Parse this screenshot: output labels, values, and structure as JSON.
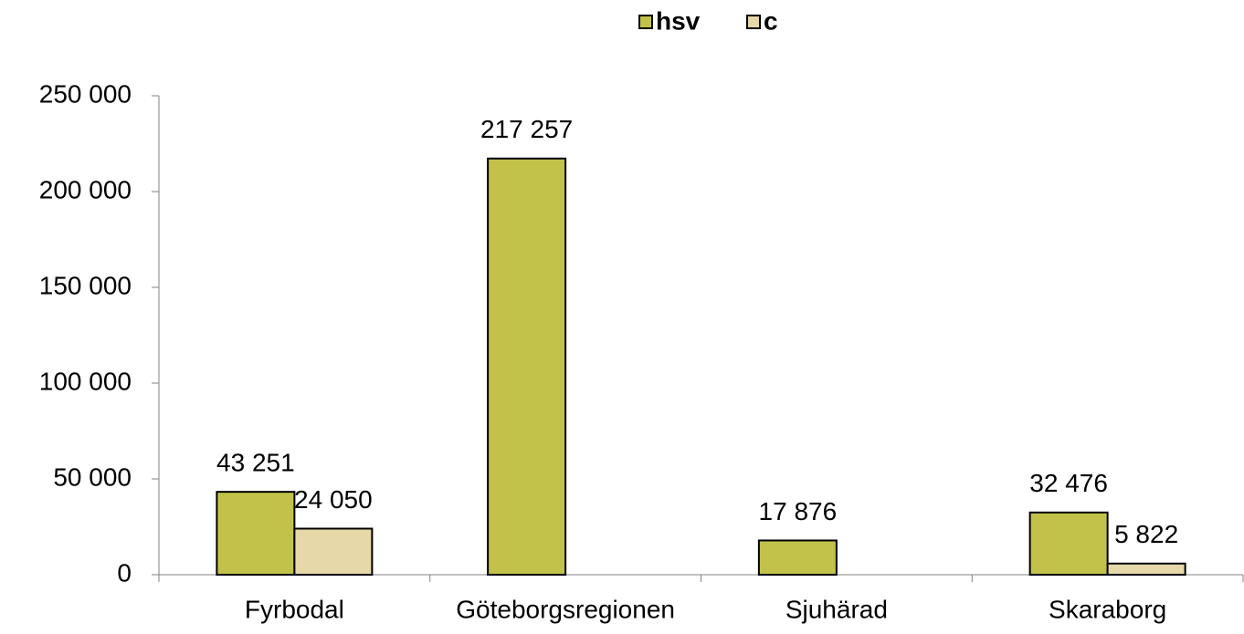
{
  "chart_data": {
    "type": "bar",
    "categories": [
      "Fyrbodal",
      "Göteborgsregionen",
      "Sjuhärad",
      "Skaraborg"
    ],
    "series": [
      {
        "name": "hsv",
        "color": "#c2c24a",
        "values": [
          43251,
          217257,
          17876,
          32476
        ],
        "value_labels": [
          "43 251",
          "217 257",
          "17 876",
          "32 476"
        ]
      },
      {
        "name": "c",
        "color": "#e6d8a8",
        "values": [
          24050,
          null,
          null,
          5822
        ],
        "value_labels": [
          "24 050",
          null,
          null,
          "5 822"
        ]
      }
    ],
    "ylim": [
      0,
      250000
    ],
    "yticks": [
      {
        "value": 0,
        "label": "0"
      },
      {
        "value": 50000,
        "label": "50 000"
      },
      {
        "value": 100000,
        "label": "100 000"
      },
      {
        "value": 150000,
        "label": "150 000"
      },
      {
        "value": 200000,
        "label": "200 000"
      },
      {
        "value": 250000,
        "label": "250 000"
      }
    ],
    "legend": "top",
    "grid": false
  }
}
